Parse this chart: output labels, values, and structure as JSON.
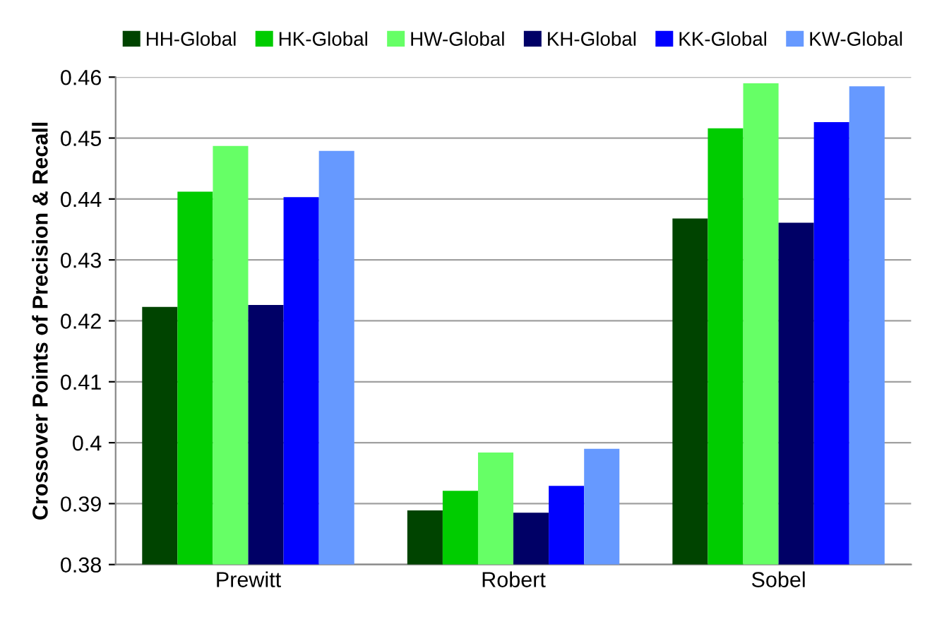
{
  "chart_data": {
    "type": "bar",
    "ylabel": "Crossover Points of Precision & Recall",
    "categories": [
      "Prewitt",
      "Robert",
      "Sobel"
    ],
    "series": [
      {
        "name": "HH-Global",
        "color": "#004400",
        "values": [
          0.4223,
          0.3889,
          0.4368
        ]
      },
      {
        "name": "HK-Global",
        "color": "#00cc00",
        "values": [
          0.4412,
          0.3921,
          0.4516
        ]
      },
      {
        "name": "HW-Global",
        "color": "#66ff66",
        "values": [
          0.4487,
          0.3984,
          0.459
        ]
      },
      {
        "name": "KH-Global",
        "color": "#000066",
        "values": [
          0.4226,
          0.3885,
          0.4361
        ]
      },
      {
        "name": "KK-Global",
        "color": "#0000ff",
        "values": [
          0.4403,
          0.3929,
          0.4526
        ]
      },
      {
        "name": "KW-Global",
        "color": "#6699ff",
        "values": [
          0.4479,
          0.399,
          0.4585
        ]
      }
    ],
    "ylim": [
      0.38,
      0.46
    ],
    "yticks": [
      0.38,
      0.39,
      {
        "value": 0.4,
        "label": "0.4"
      },
      0.41,
      0.42,
      0.43,
      0.44,
      0.45,
      0.46
    ],
    "grid": "y",
    "legend": "top"
  }
}
